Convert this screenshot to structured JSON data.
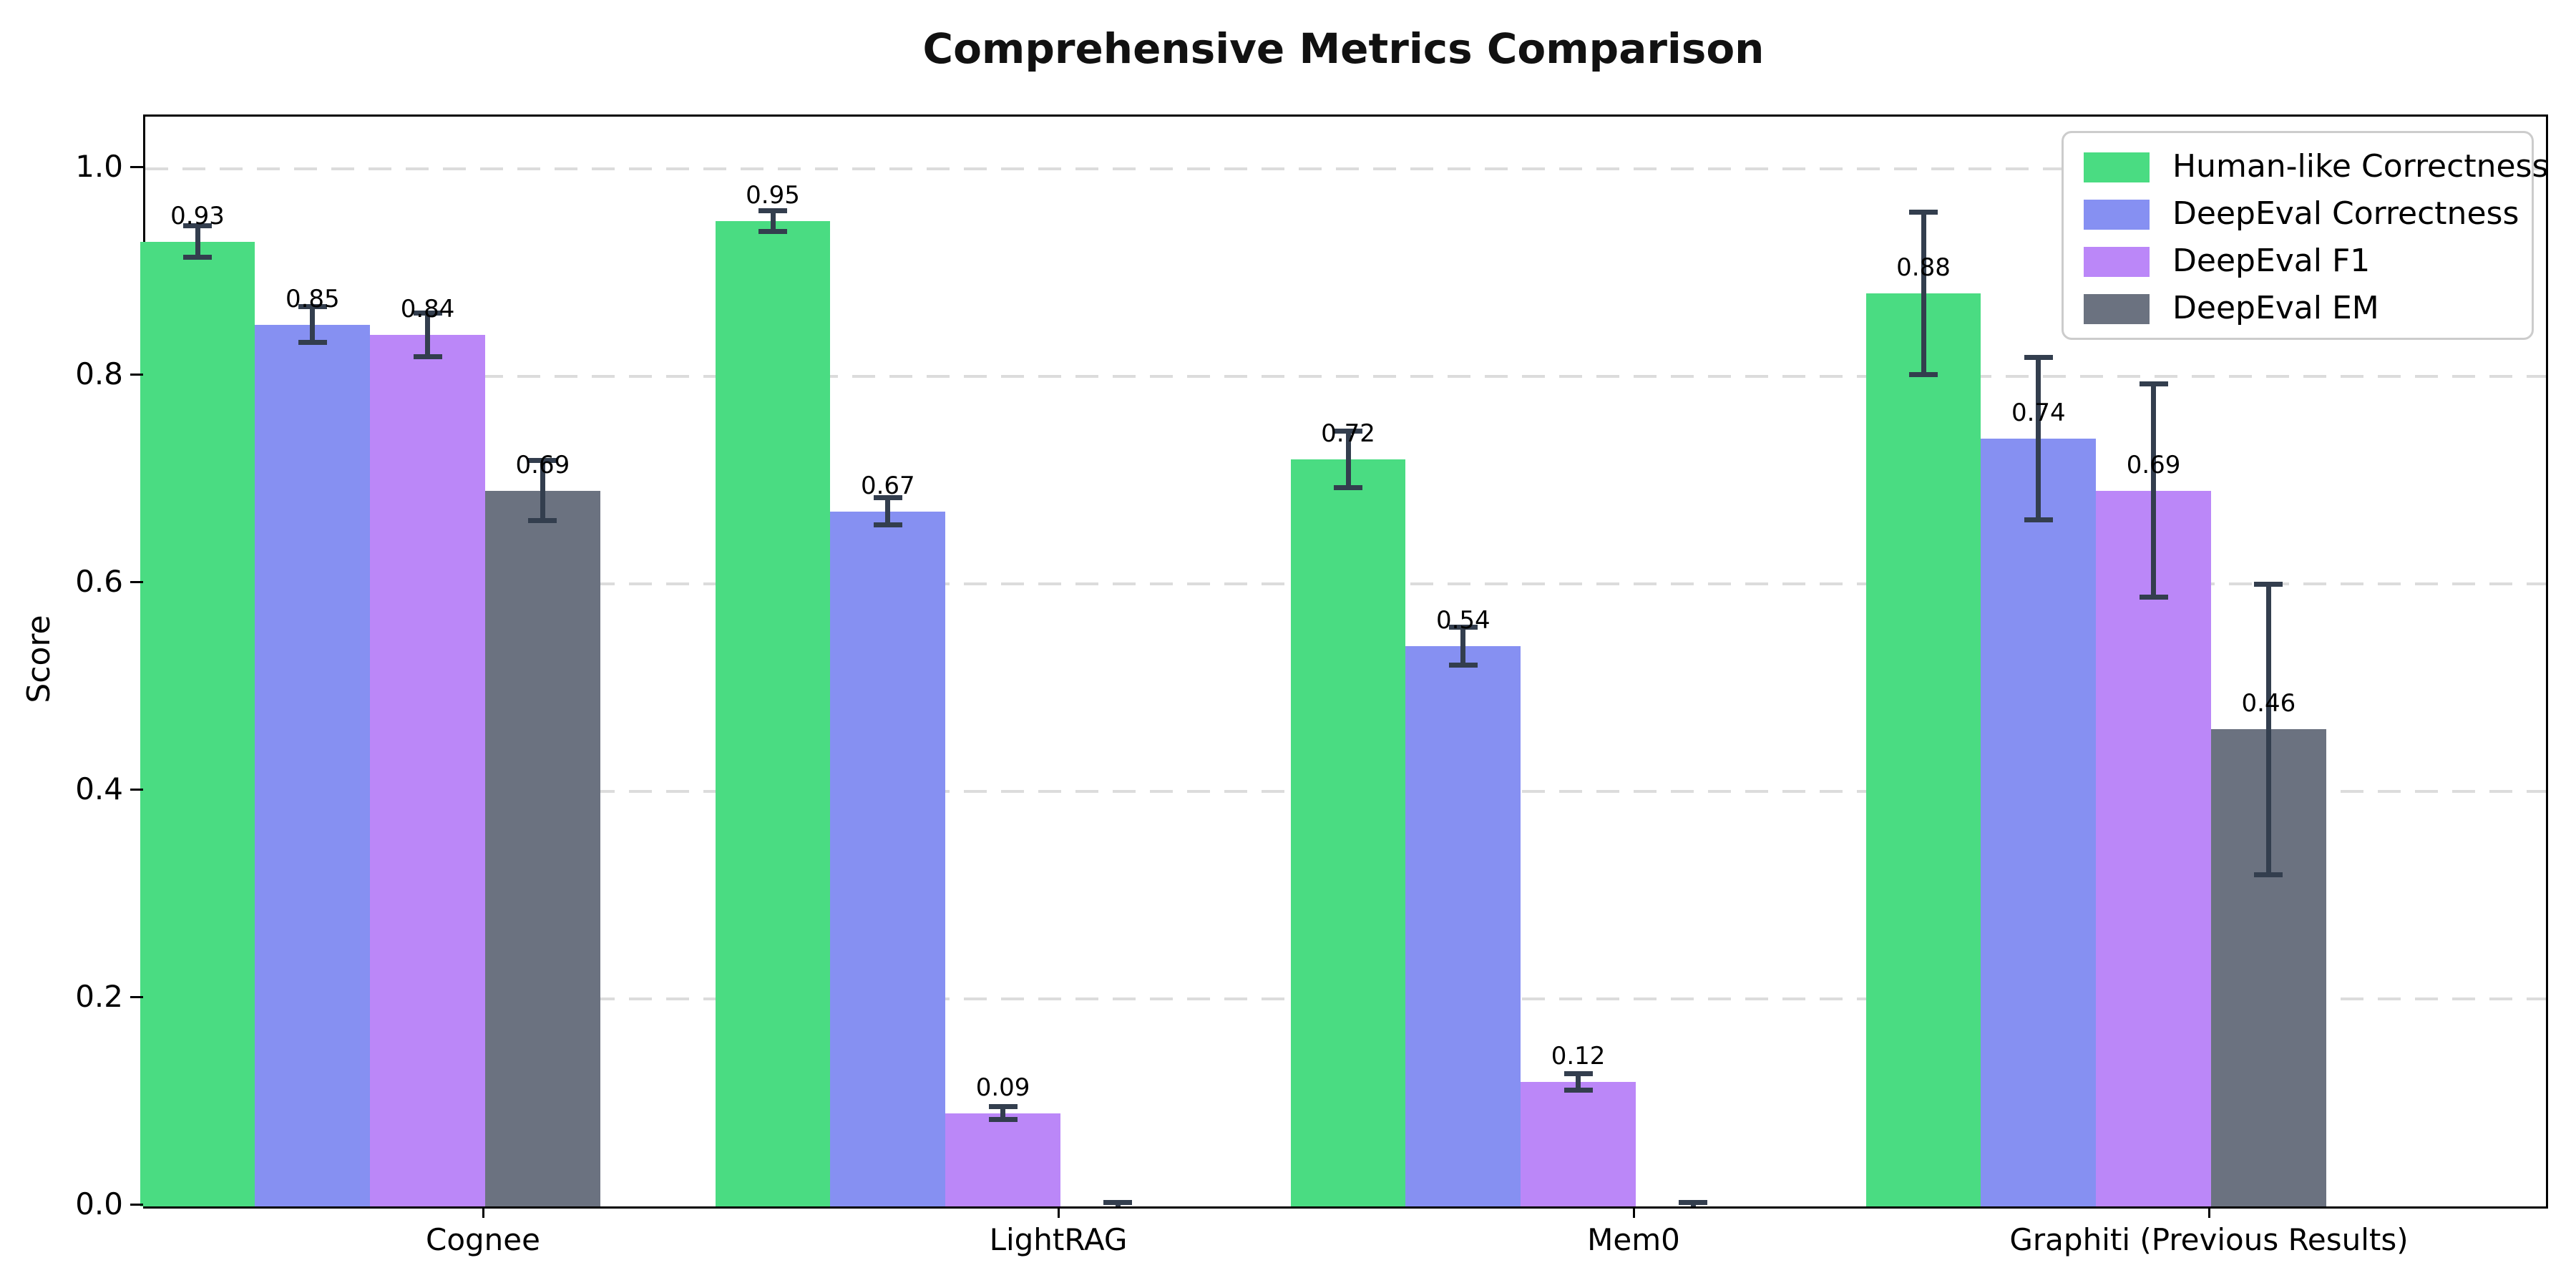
{
  "chart_data": {
    "type": "bar",
    "title": "Comprehensive Metrics Comparison",
    "ylabel": "Score",
    "xlabel": "",
    "categories": [
      "Cognee",
      "LightRAG",
      "Mem0",
      "Graphiti (Previous Results)"
    ],
    "y_tick_labels": [
      "0.0",
      "0.2",
      "0.4",
      "0.6",
      "0.8",
      "1.0"
    ],
    "y_tick_values": [
      0.0,
      0.2,
      0.4,
      0.6,
      0.8,
      1.0
    ],
    "ylim": [
      0,
      1.05
    ],
    "grid": "horizontal-dashed",
    "legend": {
      "position": "upper-right",
      "entries": [
        "Human-like Correctness",
        "DeepEval Correctness",
        "DeepEval F1",
        "DeepEval EM"
      ]
    },
    "series": [
      {
        "name": "Human-like Correctness",
        "color": "#4adc82",
        "values": [
          0.93,
          0.95,
          0.72,
          0.88
        ],
        "errors": [
          0.015,
          0.01,
          0.027,
          0.078
        ],
        "bar_labels": [
          "0.93",
          "0.95",
          "0.72",
          "0.88"
        ]
      },
      {
        "name": "DeepEval Correctness",
        "color": "#8690f2",
        "values": [
          0.85,
          0.67,
          0.54,
          0.74
        ],
        "errors": [
          0.017,
          0.013,
          0.018,
          0.078
        ],
        "bar_labels": [
          "0.85",
          "0.67",
          "0.54",
          "0.74"
        ]
      },
      {
        "name": "DeepEval F1",
        "color": "#bb87f8",
        "values": [
          0.84,
          0.09,
          0.12,
          0.69
        ],
        "errors": [
          0.021,
          0.006,
          0.008,
          0.103
        ],
        "bar_labels": [
          "0.84",
          "0.09",
          "0.12",
          "0.69"
        ]
      },
      {
        "name": "DeepEval EM",
        "color": "#6b7280",
        "values": [
          0.69,
          0.0,
          0.0,
          0.46
        ],
        "errors": [
          0.029,
          0.004,
          0.004,
          0.14
        ],
        "bar_labels": [
          "0.69",
          "",
          "",
          "0.46"
        ]
      }
    ],
    "colors": {
      "errorbar": "#333e4e",
      "grid": "#dcdcdc",
      "spine": "#000000",
      "background": "#ffffff"
    }
  }
}
